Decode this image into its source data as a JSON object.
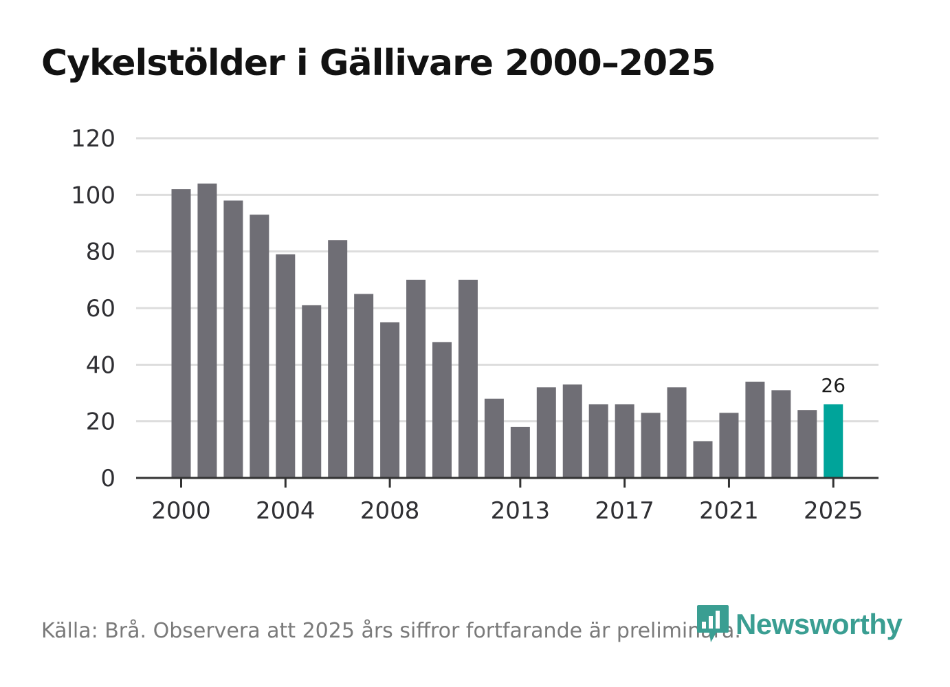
{
  "title": "Cykelstölder i Gällivare 2000–2025",
  "source": "Källa: Brå. Observera att 2025 års siffror fortfarande är preliminära.",
  "logo": {
    "text": "Newsworthy",
    "icon": "bar-chart-icon"
  },
  "colors": {
    "bar": "#6f6e75",
    "highlight": "#00a49a",
    "grid": "#dddddd",
    "axis": "#333333",
    "brand": "#3a9e92"
  },
  "chart_data": {
    "type": "bar",
    "title": "Cykelstölder i Gällivare 2000–2025",
    "xlabel": "",
    "ylabel": "",
    "ylim": [
      0,
      120
    ],
    "yticks": [
      0,
      20,
      40,
      60,
      80,
      100,
      120
    ],
    "xtick_labels": [
      "2000",
      "2004",
      "2008",
      "2013",
      "2017",
      "2021",
      "2025"
    ],
    "categories": [
      "2000",
      "2001",
      "2002",
      "2003",
      "2004",
      "2005",
      "2006",
      "2007",
      "2008",
      "2009",
      "2010",
      "2011",
      "2012",
      "2013",
      "2014",
      "2015",
      "2016",
      "2017",
      "2018",
      "2019",
      "2020",
      "2021",
      "2022",
      "2023",
      "2024",
      "2025"
    ],
    "values": [
      102,
      104,
      98,
      93,
      79,
      61,
      84,
      65,
      55,
      70,
      48,
      70,
      28,
      18,
      32,
      33,
      26,
      26,
      23,
      32,
      13,
      23,
      34,
      31,
      24,
      26
    ],
    "highlight": {
      "category": "2025",
      "label": "26"
    },
    "grid": true
  }
}
